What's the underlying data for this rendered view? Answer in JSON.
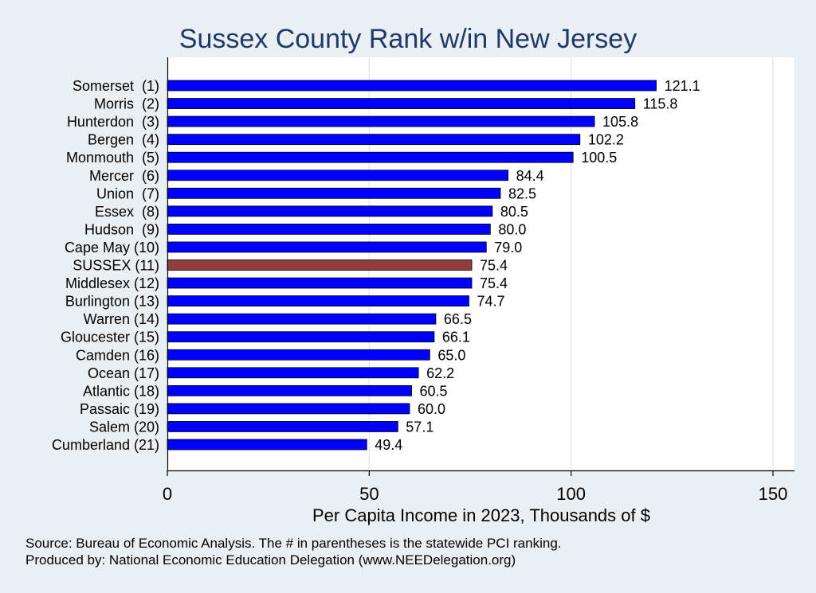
{
  "chart_data": {
    "type": "bar",
    "orientation": "horizontal",
    "title": "Sussex County Rank w/in New Jersey",
    "xlabel": "Per Capita Income in 2023, Thousands of $",
    "ylabel": "",
    "xlim": [
      0,
      155
    ],
    "xticks": [
      0,
      50,
      100,
      150
    ],
    "xtick_labels": [
      "0",
      "50",
      "100",
      "150"
    ],
    "grid": "vertical",
    "categories": [
      "Somerset  (1)",
      "Morris  (2)",
      "Hunterdon  (3)",
      "Bergen  (4)",
      "Monmouth  (5)",
      "Mercer  (6)",
      "Union  (7)",
      "Essex  (8)",
      "Hudson  (9)",
      "Cape May (10)",
      "SUSSEX (11)",
      "Middlesex (12)",
      "Burlington (13)",
      "Warren (14)",
      "Gloucester (15)",
      "Camden (16)",
      "Ocean (17)",
      "Atlantic (18)",
      "Passaic (19)",
      "Salem (20)",
      "Cumberland (21)"
    ],
    "values": [
      121.1,
      115.8,
      105.8,
      102.2,
      100.5,
      84.4,
      82.5,
      80.5,
      80.0,
      79.0,
      75.4,
      75.4,
      74.7,
      66.5,
      66.1,
      65.0,
      62.2,
      60.5,
      60.0,
      57.1,
      49.4
    ],
    "value_labels": [
      "121.1",
      "115.8",
      "105.8",
      "102.2",
      "100.5",
      "84.4",
      "82.5",
      "80.5",
      "80.0",
      "79.0",
      "75.4",
      "75.4",
      "74.7",
      "66.5",
      "66.1",
      "65.0",
      "62.2",
      "60.5",
      "60.0",
      "57.1",
      "49.4"
    ],
    "highlight_index": 10,
    "colors": {
      "bar": "#0000ff",
      "highlight": "#943c3c",
      "plot_background": "#ffffff",
      "page_background": "#e9eff2",
      "grid": "#e4ebef",
      "title": "#1f3a68"
    }
  },
  "notes": {
    "source": "Source: Bureau of Economic Analysis. The # in parentheses is the statewide PCI ranking.",
    "producer": "Produced by: National Economic Education Delegation (www.NEEDelegation.org)"
  }
}
